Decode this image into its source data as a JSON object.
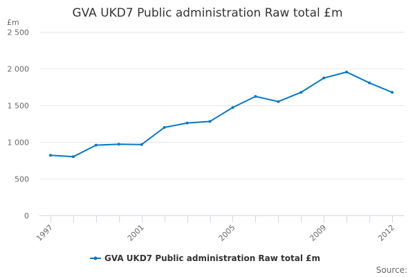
{
  "chart_data": {
    "type": "line",
    "title": "GVA UKD7 Public administration Raw total £m",
    "ylabel": "£m",
    "xlabel": "",
    "ylim": [
      0,
      2500
    ],
    "yticks": [
      0,
      500,
      1000,
      1500,
      2000,
      2500
    ],
    "ytick_labels": [
      "0",
      "500",
      "1 000",
      "1 500",
      "2 000",
      "2 500"
    ],
    "x": [
      1997,
      1998,
      1999,
      2000,
      2001,
      2002,
      2003,
      2004,
      2005,
      2006,
      2007,
      2008,
      2009,
      2010,
      2011,
      2012
    ],
    "xtick_labels": [
      "1997",
      "2001",
      "2005",
      "2009",
      "2012"
    ],
    "grid": true,
    "legend_position": "bottom",
    "series": [
      {
        "name": "GVA UKD7 Public administration Raw total £m",
        "color": "#0077c8",
        "values": [
          818,
          799,
          956,
          969,
          965,
          1198,
          1258,
          1280,
          1469,
          1620,
          1550,
          1676,
          1871,
          1953,
          1805,
          1676
        ]
      }
    ],
    "credit": "Source:"
  }
}
